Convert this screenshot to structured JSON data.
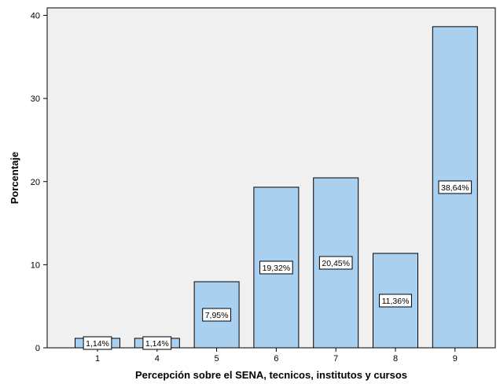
{
  "chart_data": {
    "type": "bar",
    "title": "",
    "xlabel": "Percepción sobre el SENA, tecnicos, institutos y cursos",
    "ylabel": "Porcentaje",
    "categories": [
      "1",
      "4",
      "5",
      "6",
      "7",
      "8",
      "9"
    ],
    "values": [
      1.14,
      1.14,
      7.95,
      19.32,
      20.45,
      11.36,
      38.64
    ],
    "data_labels": [
      "1,14%",
      "1,14%",
      "7,95%",
      "19,32%",
      "20,45%",
      "11,36%",
      "38,64%"
    ],
    "ylim": [
      0,
      40.9
    ],
    "yticks": [
      0,
      10,
      20,
      30,
      40
    ],
    "grid": false,
    "legend": "none",
    "colors": {
      "plot_background": "#f0f0f0",
      "bar_fill": "#aad0f0",
      "bar_stroke": "#000000",
      "label_box": "#ffffff"
    }
  }
}
